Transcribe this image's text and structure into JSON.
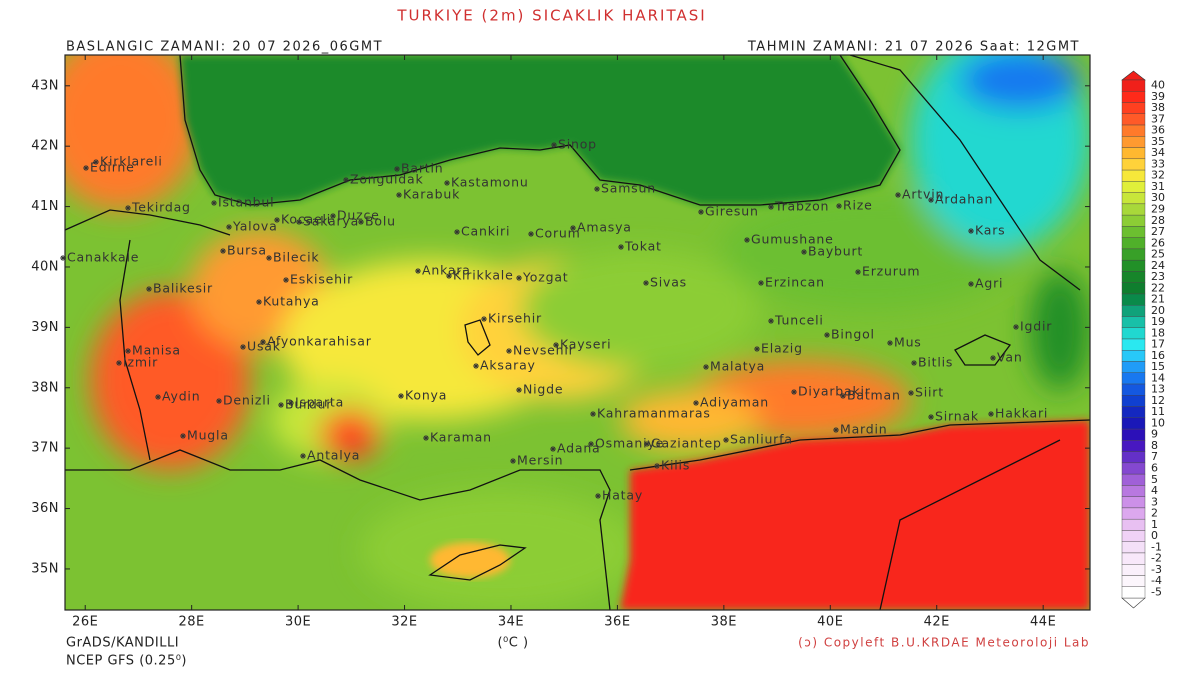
{
  "header": {
    "title": "TURKIYE (2m) SICAKLIK HARITASI",
    "start_time": "BASLANGIC ZAMANI: 20 07 2026_06GMT",
    "forecast_time": "TAHMIN ZAMANI: 21 07 2026 Saat: 12GMT"
  },
  "map": {
    "xlim": [
      25.62,
      44.88
    ],
    "ylim": [
      34.32,
      43.51
    ],
    "xticks": [
      {
        "value": 26,
        "label": "26E"
      },
      {
        "value": 28,
        "label": "28E"
      },
      {
        "value": 30,
        "label": "30E"
      },
      {
        "value": 32,
        "label": "32E"
      },
      {
        "value": 34,
        "label": "34E"
      },
      {
        "value": 36,
        "label": "36E"
      },
      {
        "value": 38,
        "label": "38E"
      },
      {
        "value": 40,
        "label": "40E"
      },
      {
        "value": 42,
        "label": "42E"
      },
      {
        "value": 44,
        "label": "44E"
      }
    ],
    "yticks": [
      {
        "value": 35,
        "label": "35N"
      },
      {
        "value": 36,
        "label": "36N"
      },
      {
        "value": 37,
        "label": "37N"
      },
      {
        "value": 38,
        "label": "38N"
      },
      {
        "value": 39,
        "label": "39N"
      },
      {
        "value": 40,
        "label": "40N"
      },
      {
        "value": 41,
        "label": "41N"
      },
      {
        "value": 42,
        "label": "42N"
      },
      {
        "value": 43,
        "label": "43N"
      }
    ],
    "cities": [
      "Kirklareli",
      "Edirne",
      "Tekirdag",
      "Istanbul",
      "Canakkale",
      "Balikesir",
      "Manisa",
      "Izmir",
      "Aydin",
      "Mugla",
      "Denizli",
      "Usak",
      "Afyonkarahisar",
      "Kutahya",
      "Bilecik",
      "Bursa",
      "Yalova",
      "Kocaeli",
      "Sakarya",
      "Duzce",
      "Bolu",
      "Zonguldak",
      "Bartin",
      "Karabuk",
      "Kastamonu",
      "Sinop",
      "Samsun",
      "Cankiri",
      "Corum",
      "Amasya",
      "Tokat",
      "Giresun",
      "Trabzon",
      "Rize",
      "Artvin",
      "Ardahan",
      "Kars",
      "Gumushane",
      "Bayburt",
      "Erzurum",
      "Erzincan",
      "Agri",
      "Igdir",
      "Eskisehir",
      "Ankara",
      "Kirikkale",
      "Yozgat",
      "Sivas",
      "Kirsehir",
      "Nevsehir",
      "Kayseri",
      "Aksaray",
      "Nigde",
      "Konya",
      "Karaman",
      "Isparta",
      "Burdur",
      "Antalya",
      "Mersin",
      "Adana",
      "Osmaniye",
      "Gaziantep",
      "Kilis",
      "Hatay",
      "Kahramanmaras",
      "Adiyaman",
      "Malatya",
      "Elazig",
      "Tunceli",
      "Bingol",
      "Mus",
      "Bitlis",
      "Van",
      "Diyarbakir",
      "Batman",
      "Siirt",
      "Sirnak",
      "Hakkari",
      "Mardin",
      "Sanliurfa"
    ]
  },
  "colorbar": {
    "unit": "(⁰C )",
    "levels": [
      40,
      39,
      38,
      37,
      36,
      35,
      34,
      33,
      32,
      31,
      30,
      29,
      28,
      27,
      26,
      25,
      24,
      23,
      22,
      21,
      20,
      19,
      18,
      17,
      16,
      15,
      14,
      13,
      12,
      11,
      10,
      9,
      8,
      7,
      6,
      5,
      4,
      3,
      2,
      1,
      0,
      -1,
      -2,
      -3,
      -4,
      -5
    ],
    "colors": [
      "#f0201a",
      "#ff2a1a",
      "#ff4020",
      "#ff5a28",
      "#ff7a2a",
      "#ff9a30",
      "#ffb830",
      "#ffd23a",
      "#f6e83a",
      "#e0ef3a",
      "#c8e63a",
      "#a8d83a",
      "#8ccd35",
      "#6cbf30",
      "#50b02a",
      "#38a028",
      "#229028",
      "#17852a",
      "#0f7e2e",
      "#0a8a4a",
      "#10a27a",
      "#18c0a8",
      "#20d8d0",
      "#2ae8f0",
      "#28c8f8",
      "#209cf8",
      "#1878f0",
      "#1458e0",
      "#1040d0",
      "#1428c0",
      "#1a18b8",
      "#2c10b8",
      "#4818c0",
      "#6430c8",
      "#8448d0",
      "#a060d8",
      "#b878e0",
      "#cc90e8",
      "#dca8ee",
      "#e8c0f2",
      "#f0d2f6",
      "#f4e0f8",
      "#f8e8fa",
      "#faf0fb",
      "#fcf6fc",
      "#ffffff"
    ]
  },
  "footer": {
    "software": "GrADS/KANDILLI",
    "model": "NCEP GFS (0.25⁰)",
    "credit": "(ↄ) Copyleft B.U.KRDAE Meteoroloji Lab"
  }
}
